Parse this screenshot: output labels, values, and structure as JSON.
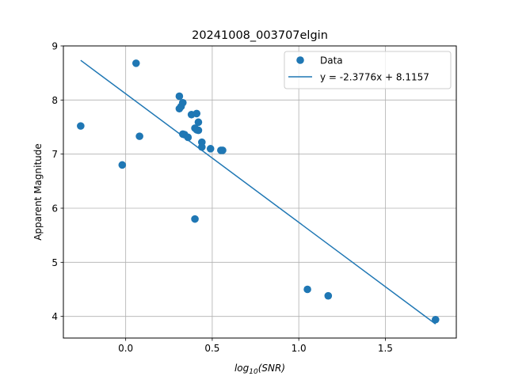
{
  "chart_data": {
    "type": "scatter",
    "title": "20241008_003707elgin",
    "xlabel": "log10(SNR)",
    "xlabel_parts": {
      "prefix": "log",
      "subscript": "10",
      "argument": "(SNR)"
    },
    "ylabel": "Apparent Magnitude",
    "xlim": [
      -0.36,
      1.91
    ],
    "ylim": [
      3.6,
      9.0
    ],
    "xticks": [
      0.0,
      0.5,
      1.0,
      1.5
    ],
    "xtick_labels": [
      "0.0",
      "0.5",
      "1.0",
      "1.5"
    ],
    "yticks": [
      4,
      5,
      6,
      7,
      8,
      9
    ],
    "ytick_labels": [
      "4",
      "5",
      "6",
      "7",
      "8",
      "9"
    ],
    "grid": true,
    "legend_position": "top-right",
    "series": [
      {
        "name": "Data",
        "kind": "scatter",
        "color": "#1f77b4",
        "points": [
          {
            "x": -0.26,
            "y": 7.52
          },
          {
            "x": -0.02,
            "y": 6.8
          },
          {
            "x": 0.06,
            "y": 8.68
          },
          {
            "x": 0.08,
            "y": 7.33
          },
          {
            "x": 0.31,
            "y": 8.07
          },
          {
            "x": 0.31,
            "y": 7.84
          },
          {
            "x": 0.32,
            "y": 7.88
          },
          {
            "x": 0.33,
            "y": 7.95
          },
          {
            "x": 0.33,
            "y": 7.37
          },
          {
            "x": 0.34,
            "y": 7.36
          },
          {
            "x": 0.36,
            "y": 7.31
          },
          {
            "x": 0.38,
            "y": 7.73
          },
          {
            "x": 0.4,
            "y": 7.48
          },
          {
            "x": 0.41,
            "y": 7.75
          },
          {
            "x": 0.41,
            "y": 7.45
          },
          {
            "x": 0.42,
            "y": 7.44
          },
          {
            "x": 0.42,
            "y": 7.59
          },
          {
            "x": 0.44,
            "y": 7.22
          },
          {
            "x": 0.44,
            "y": 7.13
          },
          {
            "x": 0.4,
            "y": 5.8
          },
          {
            "x": 0.49,
            "y": 7.1
          },
          {
            "x": 0.55,
            "y": 7.07
          },
          {
            "x": 0.56,
            "y": 7.07
          },
          {
            "x": 1.05,
            "y": 4.5
          },
          {
            "x": 1.17,
            "y": 4.38
          },
          {
            "x": 1.79,
            "y": 3.94
          }
        ]
      },
      {
        "name": "y = -2.3776x + 8.1157",
        "kind": "line",
        "color": "#1f77b4",
        "slope": -2.3776,
        "intercept": 8.1157,
        "x_range": [
          -0.26,
          1.79
        ]
      }
    ]
  }
}
